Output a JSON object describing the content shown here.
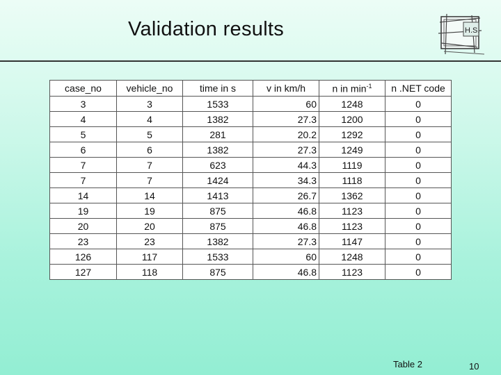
{
  "slide": {
    "title": "Validation results",
    "caption": "Table 2",
    "page_number": "10",
    "logo_text": "H.S."
  },
  "table": {
    "headers": [
      "case_no",
      "vehicle_no",
      "time in s",
      "v in km/h",
      "n in min",
      "n .NET code"
    ],
    "header_superscript": "-1",
    "rows": [
      [
        "3",
        "3",
        "1533",
        "60",
        "1248",
        "0"
      ],
      [
        "4",
        "4",
        "1382",
        "27.3",
        "1200",
        "0"
      ],
      [
        "5",
        "5",
        "281",
        "20.2",
        "1292",
        "0"
      ],
      [
        "6",
        "6",
        "1382",
        "27.3",
        "1249",
        "0"
      ],
      [
        "7",
        "7",
        "623",
        "44.3",
        "1119",
        "0"
      ],
      [
        "7",
        "7",
        "1424",
        "34.3",
        "1118",
        "0"
      ],
      [
        "14",
        "14",
        "1413",
        "26.7",
        "1362",
        "0"
      ],
      [
        "19",
        "19",
        "875",
        "46.8",
        "1123",
        "0"
      ],
      [
        "20",
        "20",
        "875",
        "46.8",
        "1123",
        "0"
      ],
      [
        "23",
        "23",
        "1382",
        "27.3",
        "1147",
        "0"
      ],
      [
        "126",
        "117",
        "1533",
        "60",
        "1248",
        "0"
      ],
      [
        "127",
        "118",
        "875",
        "46.8",
        "1123",
        "0"
      ]
    ]
  }
}
